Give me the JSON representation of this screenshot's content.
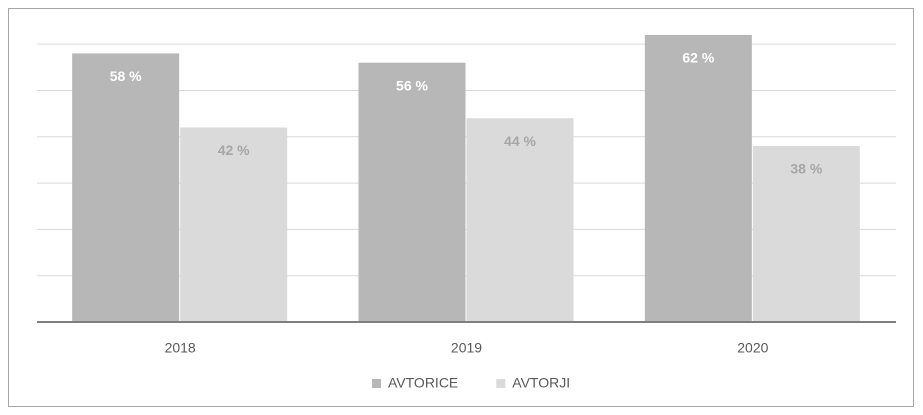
{
  "chart_data": {
    "type": "bar",
    "categories": [
      "2018",
      "2019",
      "2020"
    ],
    "series": [
      {
        "name": "AVTORICE",
        "color": "#b7b7b7",
        "values": [
          58,
          56,
          62
        ],
        "value_labels": [
          "58 %",
          "56 %",
          "62 %"
        ],
        "label_color": "#ffffff"
      },
      {
        "name": "AVTORJI",
        "color": "#dadada",
        "values": [
          42,
          44,
          38
        ],
        "value_labels": [
          "42 %",
          "44 %",
          "38 %"
        ],
        "label_color": "#a6a6a6"
      }
    ],
    "ylim": [
      0,
      65
    ],
    "yticks": [
      0,
      10,
      20,
      30,
      40,
      50,
      60
    ],
    "grid": true,
    "legend": "bottom"
  }
}
